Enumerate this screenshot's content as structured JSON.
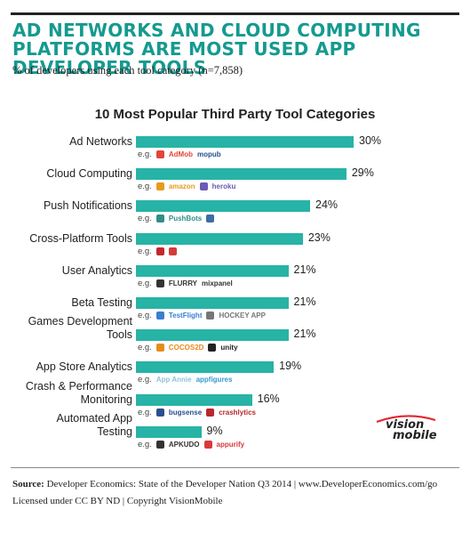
{
  "headline": "AD NETWORKS AND CLOUD COMPUTING PLATFORMS ARE MOST USED APP DEVELOPER TOOLS",
  "subtitle": "% of  developers using each tool category (n=7,858)",
  "colors": {
    "bar": "#27b3a6",
    "headline": "#159a8f"
  },
  "chart_data": {
    "type": "bar",
    "orientation": "horizontal",
    "title": "10 Most Popular Third Party Tool Categories",
    "categories": [
      "Ad Networks",
      "Cloud Computing",
      "Push Notifications",
      "Cross-Platform Tools",
      "User Analytics",
      "Beta Testing",
      "Games Development Tools",
      "App Store Analytics",
      "Crash & Performance Monitoring",
      "Automated App Testing"
    ],
    "values": [
      30,
      29,
      24,
      23,
      21,
      21,
      21,
      19,
      16,
      9
    ],
    "value_labels": [
      "30%",
      "29%",
      "24%",
      "23%",
      "21%",
      "21%",
      "21%",
      "19%",
      "16%",
      "9%"
    ],
    "xlim": [
      0,
      30
    ],
    "grid": false,
    "legend": "none"
  },
  "rows": [
    {
      "label_lines": [
        "Ad Networks"
      ],
      "eg": "e.g.",
      "examples": [
        {
          "name": "AdMob",
          "icon": "admob-icon",
          "color": "#e2463a"
        },
        {
          "name": "mopub",
          "icon": "",
          "color": "#1f4f8f"
        }
      ]
    },
    {
      "label_lines": [
        "Cloud Computing"
      ],
      "eg": "e.g.",
      "examples": [
        {
          "name": "amazon",
          "icon": "amazon-web-services-icon",
          "color": "#e89a1c"
        },
        {
          "name": "heroku",
          "icon": "heroku-icon",
          "color": "#6b5bb5"
        }
      ]
    },
    {
      "label_lines": [
        "Push Notifications"
      ],
      "eg": "e.g.",
      "examples": [
        {
          "name": "PushBots",
          "icon": "pushbots-icon",
          "color": "#2e8f88"
        },
        {
          "name": "",
          "icon": "urban-airship-icon",
          "color": "#3a6ea5"
        }
      ]
    },
    {
      "label_lines": [
        "Cross-Platform Tools"
      ],
      "eg": "e.g.",
      "examples": [
        {
          "name": "",
          "icon": "appcelerator-icon",
          "color": "#c0282d"
        },
        {
          "name": "",
          "icon": "adobe-air-icon",
          "color": "#d63a3a"
        }
      ]
    },
    {
      "label_lines": [
        "User Analytics"
      ],
      "eg": "e.g.",
      "examples": [
        {
          "name": "FLURRY",
          "icon": "flurry-icon",
          "color": "#333333"
        },
        {
          "name": "mixpanel",
          "icon": "",
          "color": "#333333"
        }
      ]
    },
    {
      "label_lines": [
        "Beta Testing"
      ],
      "eg": "e.g.",
      "examples": [
        {
          "name": "TestFlight",
          "icon": "testflight-icon",
          "color": "#3a7fd0"
        },
        {
          "name": "HOCKEY APP",
          "icon": "hockeyapp-icon",
          "color": "#777777"
        }
      ]
    },
    {
      "label_lines": [
        "Games Development",
        "Tools"
      ],
      "eg": "e.g.",
      "examples": [
        {
          "name": "COCOS2D",
          "icon": "cocos2d-icon",
          "color": "#e88a1a"
        },
        {
          "name": "unity",
          "icon": "unity-icon",
          "color": "#222222"
        }
      ]
    },
    {
      "label_lines": [
        "App Store Analytics"
      ],
      "eg": "e.g.",
      "examples": [
        {
          "name": "App Annie",
          "icon": "",
          "color": "#8fc4d8"
        },
        {
          "name": "appfigures",
          "icon": "",
          "color": "#3a9ad0"
        }
      ]
    },
    {
      "label_lines": [
        "Crash & Performance",
        "Monitoring"
      ],
      "eg": "e.g.",
      "examples": [
        {
          "name": "bugsense",
          "icon": "bugsense-icon",
          "color": "#2a4f8f"
        },
        {
          "name": "crashlytics",
          "icon": "crashlytics-icon",
          "color": "#b8282d"
        }
      ]
    },
    {
      "label_lines": [
        "Automated App",
        "Testing"
      ],
      "eg": "e.g.",
      "examples": [
        {
          "name": "APKUDO",
          "icon": "apkudo-icon",
          "color": "#333333"
        },
        {
          "name": "appurify",
          "icon": "appurify-icon",
          "color": "#d63a3a"
        }
      ]
    }
  ],
  "brand": {
    "line1": "vision",
    "line2": "mobile"
  },
  "source": {
    "label": "Source:",
    "text": "Developer Economics: State of the Developer Nation Q3 2014 | www.DeveloperEconomics.com/go",
    "license": "Licensed under CC BY ND | Copyright VisionMobile"
  }
}
